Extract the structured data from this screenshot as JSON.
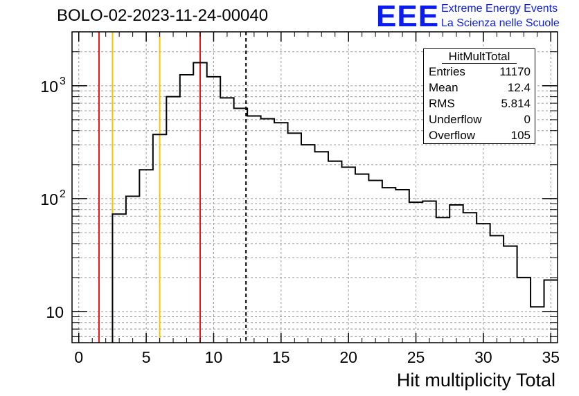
{
  "title": "BOLO-02-2023-11-24-00040",
  "logo": {
    "text": "EEE",
    "line1": "Extreme Energy Events",
    "line2": "La Scienza nelle Scuole",
    "color": "#0a1cf0"
  },
  "stats": {
    "name": "HitMultTotal",
    "rows": [
      {
        "key": "Entries",
        "value": "11170"
      },
      {
        "key": "Mean",
        "value": "12.4"
      },
      {
        "key": "RMS",
        "value": "5.814"
      },
      {
        "key": "Underflow",
        "value": "0"
      },
      {
        "key": "Overflow",
        "value": "105"
      }
    ]
  },
  "chart_data": {
    "type": "histogram",
    "title": "BOLO-02-2023-11-24-00040",
    "xlabel": "Hit multiplicity Total",
    "ylabel": "",
    "xlim": [
      -0.5,
      35.5
    ],
    "ylim": [
      5.3,
      3000
    ],
    "ylog": true,
    "grid": true,
    "bin_edges": [
      -0.5,
      0.5,
      1.5,
      2.5,
      3.5,
      4.5,
      5.5,
      6.5,
      7.5,
      8.5,
      9.5,
      10.5,
      11.5,
      12.5,
      13.5,
      14.5,
      15.5,
      16.5,
      17.5,
      18.5,
      19.5,
      20.5,
      21.5,
      22.5,
      23.5,
      24.5,
      25.5,
      26.5,
      27.5,
      28.5,
      29.5,
      30.5,
      31.5,
      32.5,
      33.5,
      34.5,
      35.5
    ],
    "counts": [
      0,
      0,
      0,
      73,
      105,
      180,
      370,
      800,
      1250,
      1600,
      1200,
      780,
      630,
      540,
      510,
      470,
      380,
      300,
      260,
      215,
      190,
      165,
      145,
      125,
      120,
      93,
      95,
      68,
      88,
      75,
      60,
      47,
      38,
      20,
      11,
      19
    ],
    "x_ticks": [
      "0",
      "5",
      "10",
      "15",
      "20",
      "25",
      "30",
      "35"
    ],
    "y_ticks": [
      "10",
      "10^2",
      "10^3"
    ],
    "vertical_lines": [
      {
        "x": 1.5,
        "color": "#ee1111",
        "style": "solid"
      },
      {
        "x": 2.5,
        "color": "#f5c400",
        "style": "solid"
      },
      {
        "x": 6.0,
        "color": "#f5c400",
        "style": "solid"
      },
      {
        "x": 9.0,
        "color": "#ee1111",
        "style": "solid"
      },
      {
        "x": 12.4,
        "color": "#000000",
        "style": "dashed"
      }
    ],
    "legend": "top-right"
  }
}
